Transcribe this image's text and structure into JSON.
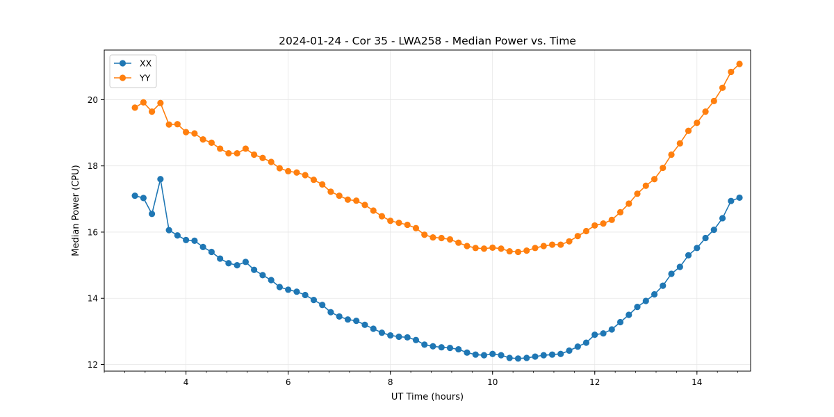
{
  "chart_data": {
    "type": "line",
    "title": "2024-01-24 - Cor 35 - LWA258 - Median Power vs. Time",
    "xlabel": "UT Time (hours)",
    "ylabel": "Median Power (CPU)",
    "xlim": [
      2.4,
      15.05
    ],
    "ylim": [
      11.8,
      21.5
    ],
    "xticks": [
      4,
      6,
      8,
      10,
      12,
      14
    ],
    "yticks": [
      12,
      14,
      16,
      18,
      20
    ],
    "x_minor_step": 0.4,
    "grid": true,
    "legend": "top-left",
    "x": [
      3.0,
      3.167,
      3.333,
      3.5,
      3.667,
      3.833,
      4.0,
      4.167,
      4.333,
      4.5,
      4.667,
      4.833,
      5.0,
      5.167,
      5.333,
      5.5,
      5.667,
      5.833,
      6.0,
      6.167,
      6.333,
      6.5,
      6.667,
      6.833,
      7.0,
      7.167,
      7.333,
      7.5,
      7.667,
      7.833,
      8.0,
      8.167,
      8.333,
      8.5,
      8.667,
      8.833,
      9.0,
      9.167,
      9.333,
      9.5,
      9.667,
      9.833,
      10.0,
      10.167,
      10.333,
      10.5,
      10.667,
      10.833,
      11.0,
      11.167,
      11.333,
      11.5,
      11.667,
      11.833,
      12.0,
      12.167,
      12.333,
      12.5,
      12.667,
      12.833,
      13.0,
      13.167,
      13.333,
      13.5,
      13.667,
      13.833,
      14.0,
      14.167,
      14.333,
      14.5,
      14.667,
      14.833
    ],
    "series": [
      {
        "name": "XX",
        "color": "#1f77b4",
        "values": [
          17.1,
          17.03,
          16.55,
          17.6,
          16.06,
          15.9,
          15.76,
          15.74,
          15.55,
          15.4,
          15.2,
          15.06,
          15.0,
          15.1,
          14.86,
          14.7,
          14.55,
          14.34,
          14.26,
          14.2,
          14.1,
          13.95,
          13.8,
          13.58,
          13.45,
          13.36,
          13.32,
          13.2,
          13.08,
          12.96,
          12.88,
          12.84,
          12.82,
          12.74,
          12.6,
          12.55,
          12.52,
          12.5,
          12.46,
          12.36,
          12.3,
          12.28,
          12.32,
          12.28,
          12.2,
          12.18,
          12.2,
          12.24,
          12.28,
          12.3,
          12.32,
          12.42,
          12.54,
          12.66,
          12.9,
          12.94,
          13.06,
          13.28,
          13.5,
          13.74,
          13.92,
          14.12,
          14.38,
          14.74,
          14.95,
          15.3,
          15.52,
          15.82,
          16.07,
          16.42,
          16.94,
          17.04
        ]
      },
      {
        "name": "YY",
        "color": "#ff7f0e",
        "values": [
          19.76,
          19.92,
          19.64,
          19.9,
          19.25,
          19.26,
          19.02,
          18.98,
          18.8,
          18.7,
          18.52,
          18.38,
          18.38,
          18.52,
          18.34,
          18.24,
          18.12,
          17.93,
          17.84,
          17.8,
          17.72,
          17.58,
          17.44,
          17.22,
          17.1,
          16.98,
          16.95,
          16.82,
          16.65,
          16.48,
          16.34,
          16.28,
          16.22,
          16.12,
          15.92,
          15.84,
          15.82,
          15.78,
          15.68,
          15.58,
          15.52,
          15.5,
          15.53,
          15.5,
          15.42,
          15.4,
          15.44,
          15.52,
          15.58,
          15.62,
          15.62,
          15.72,
          15.88,
          16.03,
          16.2,
          16.26,
          16.37,
          16.6,
          16.86,
          17.16,
          17.4,
          17.6,
          17.94,
          18.34,
          18.68,
          19.06,
          19.3,
          19.64,
          19.96,
          20.36,
          20.84,
          21.08
        ]
      }
    ]
  }
}
